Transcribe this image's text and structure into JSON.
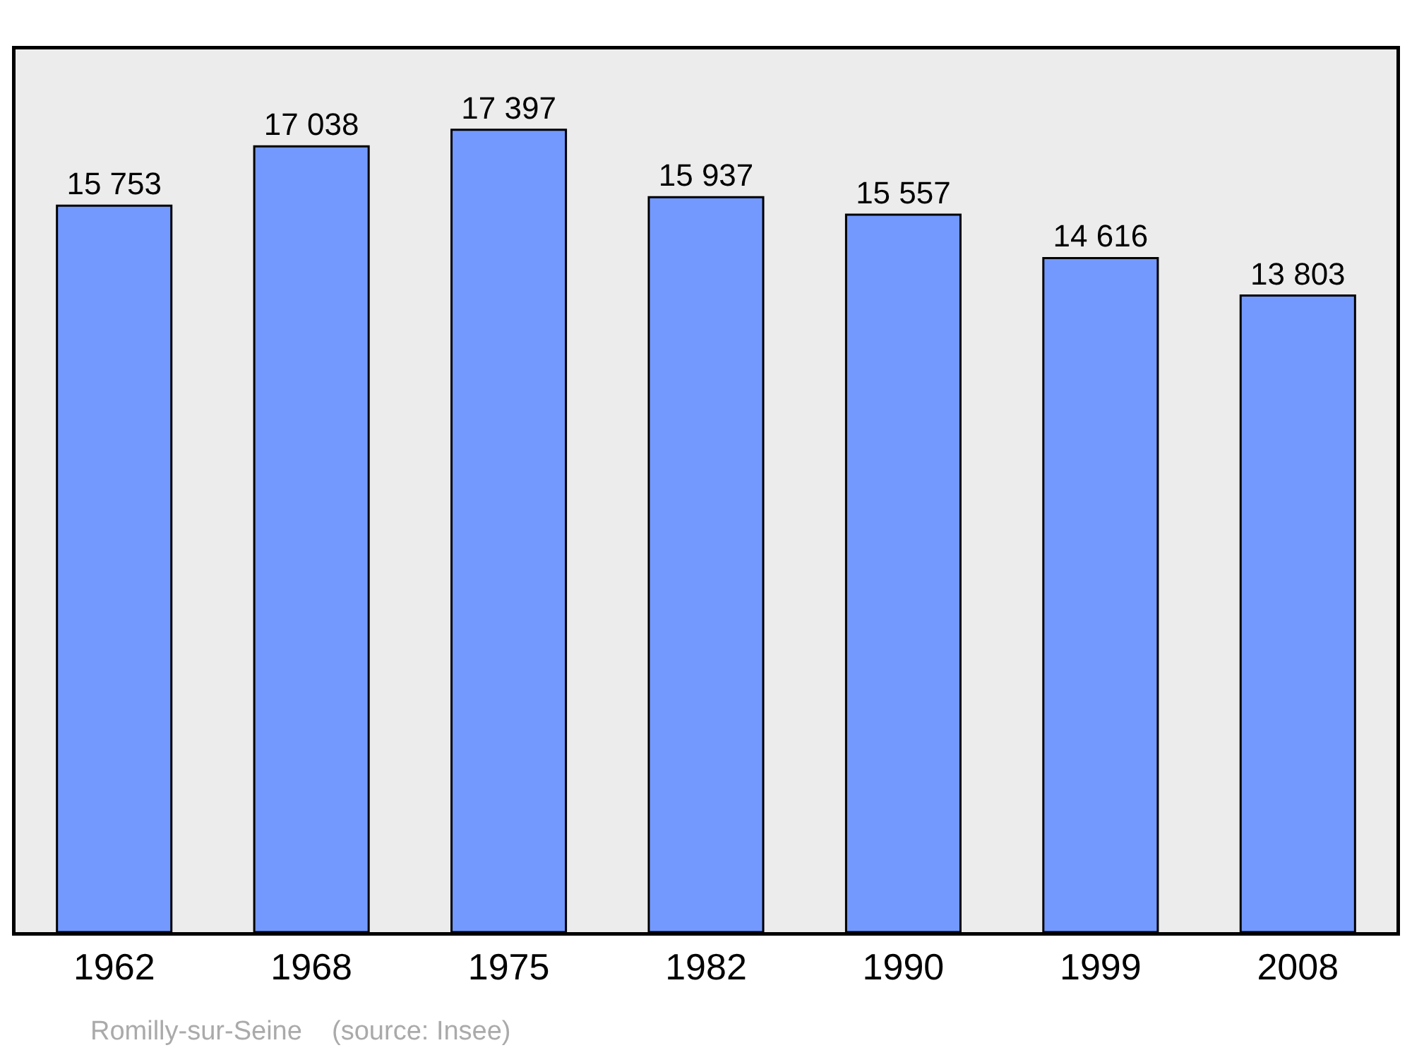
{
  "chart_data": {
    "type": "bar",
    "categories": [
      "1962",
      "1968",
      "1975",
      "1982",
      "1990",
      "1999",
      "2008"
    ],
    "values": [
      15753,
      17038,
      17397,
      15937,
      15557,
      14616,
      13803
    ],
    "value_labels": [
      "15 753",
      "17 038",
      "17 397",
      "15 937",
      "15 557",
      "14 616",
      "13 803"
    ],
    "color": "#7399ff",
    "ylim": [
      0,
      19140
    ],
    "tick_labels": "x",
    "annotations": [
      "Romilly-sur-Seine    (source: Insee)"
    ]
  }
}
